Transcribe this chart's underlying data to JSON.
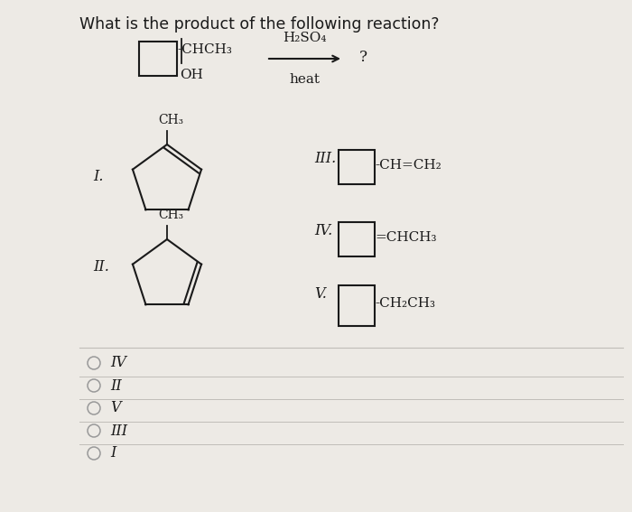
{
  "title": "What is the product of the following reaction?",
  "bg_color": "#edeae5",
  "text_color": "#1a1a1a",
  "question_fontsize": 12.5,
  "label_fontsize": 11.5,
  "chem_fontsize": 11,
  "radio_options": [
    "IV",
    "II",
    "V",
    "III",
    "I"
  ],
  "reagent_text1": "H₂SO₄",
  "reagent_text2": "heat",
  "reactant_side_chain": "-CHCH₃",
  "reactant_oh": "OH",
  "product_III_chain": "-CH=CH₂",
  "product_IV_chain": "=CHCH₃",
  "product_V_chain": "-CH₂CH₃",
  "label_I": "I.",
  "label_II": "II.",
  "label_III": "III.",
  "label_IV": "IV.",
  "label_V": "V.",
  "ch3_label": "CH₃"
}
